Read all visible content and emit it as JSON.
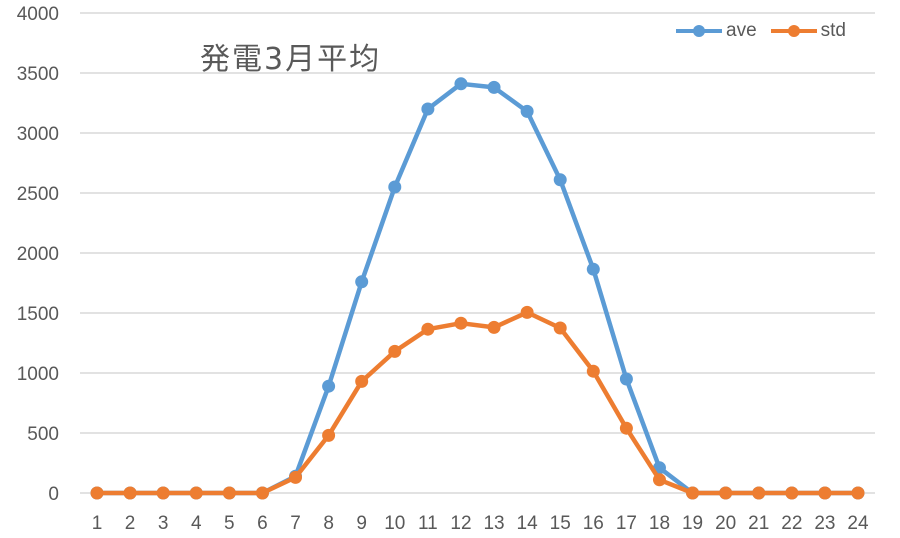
{
  "chart_data": {
    "type": "line",
    "title": "発電3月平均",
    "xlabel": "",
    "ylabel": "",
    "categories": [
      "1",
      "2",
      "3",
      "4",
      "5",
      "6",
      "7",
      "8",
      "9",
      "10",
      "11",
      "12",
      "13",
      "14",
      "15",
      "16",
      "17",
      "18",
      "19",
      "20",
      "21",
      "22",
      "23",
      "24"
    ],
    "series": [
      {
        "name": "ave",
        "color": "#5B9BD5",
        "values": [
          0,
          0,
          0,
          0,
          0,
          0,
          140,
          890,
          1760,
          2550,
          3200,
          3410,
          3380,
          3180,
          2610,
          1865,
          950,
          210,
          0,
          0,
          0,
          0,
          0,
          0
        ]
      },
      {
        "name": "std",
        "color": "#ED7D31",
        "values": [
          0,
          0,
          0,
          0,
          0,
          0,
          130,
          480,
          930,
          1180,
          1365,
          1415,
          1380,
          1505,
          1375,
          1015,
          540,
          110,
          0,
          0,
          0,
          0,
          0,
          0
        ]
      }
    ],
    "ylim": [
      0,
      4000
    ],
    "yticks": [
      0,
      500,
      1000,
      1500,
      2000,
      2500,
      3000,
      3500,
      4000
    ],
    "grid": "horizontal",
    "legend_position": "top-right"
  },
  "title": "発電3月平均",
  "legend": [
    {
      "label": "ave",
      "color": "#5B9BD5"
    },
    {
      "label": "std",
      "color": "#ED7D31"
    }
  ]
}
